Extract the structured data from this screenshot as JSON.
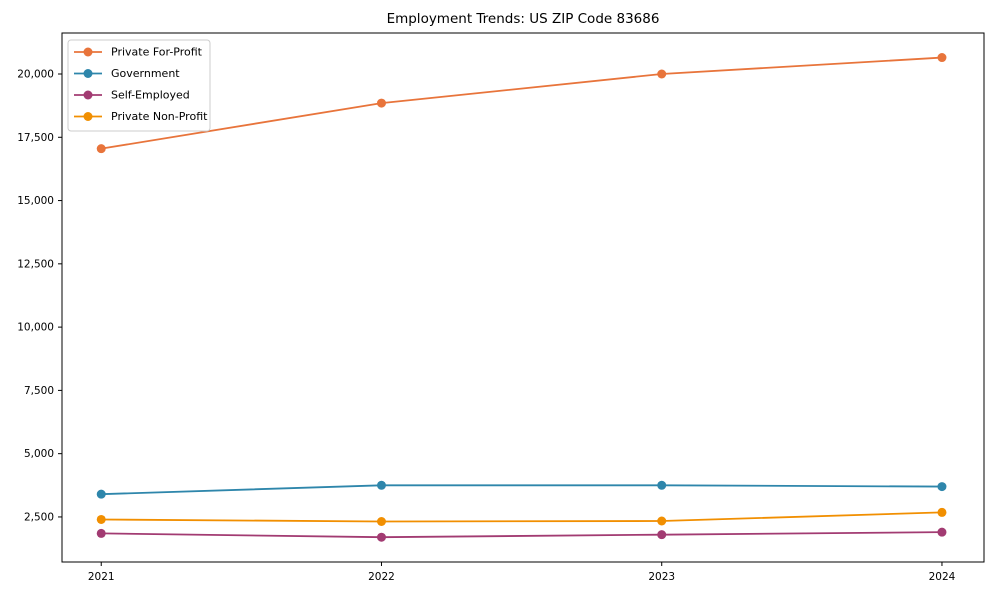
{
  "figure": {
    "title": "Employment Trends: US ZIP Code 83686"
  },
  "chart_data": {
    "type": "line",
    "title": "Employment Trends: US ZIP Code 83686",
    "xlabel": "",
    "ylabel": "",
    "x": [
      2021,
      2022,
      2023,
      2024
    ],
    "x_tick_labels": [
      "2021",
      "2022",
      "2023",
      "2024"
    ],
    "series": [
      {
        "name": "Private For-Profit",
        "color": "#E8743B",
        "values": [
          17050,
          18850,
          20000,
          20650
        ]
      },
      {
        "name": "Government",
        "color": "#2E86AB",
        "values": [
          3400,
          3750,
          3750,
          3700
        ]
      },
      {
        "name": "Self-Employed",
        "color": "#A23B72",
        "values": [
          1850,
          1700,
          1800,
          1900
        ]
      },
      {
        "name": "Private Non-Profit",
        "color": "#F18F01",
        "values": [
          2400,
          2320,
          2340,
          2680
        ]
      }
    ],
    "yticks": [
      2500,
      5000,
      7500,
      10000,
      12500,
      15000,
      17500,
      20000
    ],
    "ytick_labels": [
      "2,500",
      "5,000",
      "7,500",
      "10,000",
      "12,500",
      "15,000",
      "17,500",
      "20,000"
    ],
    "xlim": [
      2020.86,
      2024.15
    ],
    "ylim": [
      720,
      21620
    ],
    "grid": false,
    "legend_position": "upper left",
    "marker": "circle",
    "axes_color": "#000000",
    "legend_border_color": "#cccccc",
    "legend_background": "rgba(255,255,255,0.9)"
  }
}
